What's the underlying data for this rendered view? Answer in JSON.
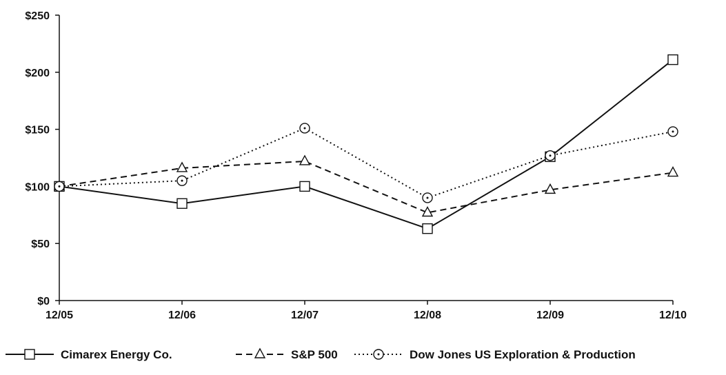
{
  "chart_data": {
    "type": "line",
    "title": "",
    "xlabel": "",
    "ylabel": "",
    "categories": [
      "12/05",
      "12/06",
      "12/07",
      "12/08",
      "12/09",
      "12/10"
    ],
    "ylim": [
      0,
      250
    ],
    "y_ticks": [
      0,
      50,
      100,
      150,
      200,
      250
    ],
    "y_tick_labels": [
      "$0",
      "$50",
      "$100",
      "$150",
      "$200",
      "$250"
    ],
    "grid": false,
    "legend_position": "bottom",
    "series": [
      {
        "name": "Cimarex Energy Co.",
        "values": [
          100,
          85,
          100,
          63,
          126,
          211
        ],
        "marker": "square",
        "line_style": "solid",
        "color": "#111111"
      },
      {
        "name": "S&P 500",
        "values": [
          100,
          116,
          122,
          77,
          97,
          112
        ],
        "marker": "triangle",
        "line_style": "dashed",
        "color": "#111111"
      },
      {
        "name": "Dow Jones US Exploration & Production",
        "values": [
          100,
          105,
          151,
          90,
          127,
          148
        ],
        "marker": "circle",
        "line_style": "dotted",
        "color": "#111111"
      }
    ]
  }
}
